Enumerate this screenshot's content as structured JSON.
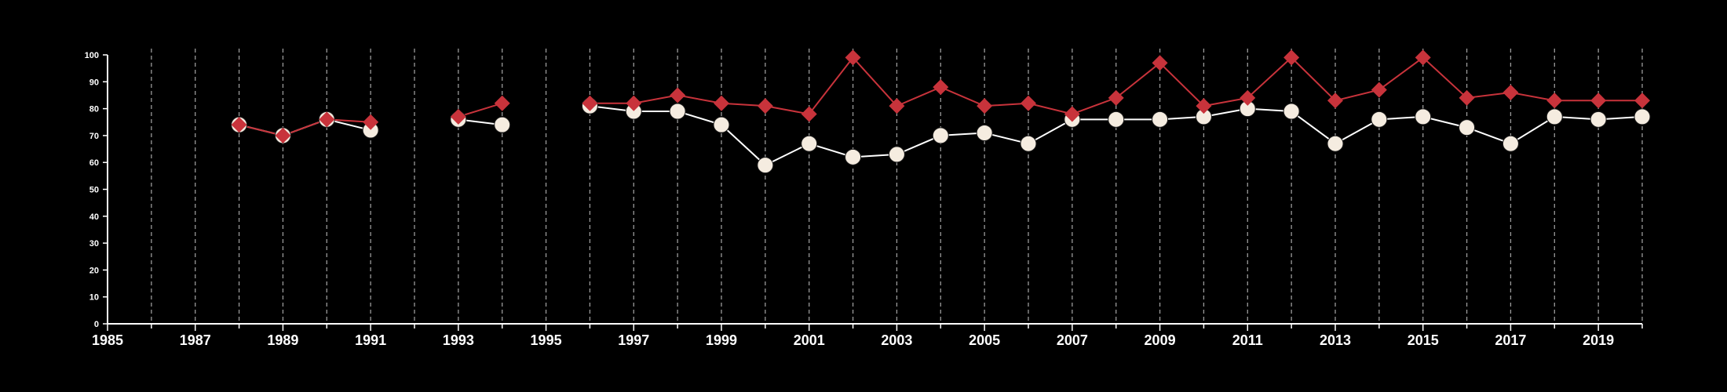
{
  "chart_data": {
    "type": "line",
    "title": "",
    "xlabel": "",
    "ylabel": "",
    "xlim": [
      1985,
      2020
    ],
    "ylim": [
      0,
      100
    ],
    "yticks": [
      0,
      10,
      20,
      30,
      40,
      50,
      60,
      70,
      80,
      90,
      100
    ],
    "xticks": [
      1985,
      1987,
      1989,
      1991,
      1993,
      1995,
      1997,
      1999,
      2001,
      2003,
      2005,
      2007,
      2009,
      2011,
      2013,
      2015,
      2017,
      2019
    ],
    "grid": "vertical dashed",
    "legend": "none",
    "x": [
      1985,
      1986,
      1987,
      1988,
      1989,
      1990,
      1991,
      1992,
      1993,
      1994,
      1995,
      1996,
      1997,
      1998,
      1999,
      2000,
      2001,
      2002,
      2003,
      2004,
      2005,
      2006,
      2007,
      2008,
      2009,
      2010,
      2011,
      2012,
      2013,
      2014,
      2015,
      2016,
      2017,
      2018,
      2019,
      2020
    ],
    "series": [
      {
        "marker": "circle",
        "color": "#f5ece0",
        "line_color": "#ffffff",
        "values": [
          null,
          null,
          null,
          74,
          70,
          76,
          72,
          null,
          76,
          74,
          null,
          81,
          79,
          79,
          74,
          59,
          67,
          62,
          63,
          70,
          71,
          67,
          76,
          76,
          76,
          77,
          80,
          79,
          67,
          76,
          77,
          73,
          67,
          77,
          76,
          77
        ]
      },
      {
        "marker": "diamond",
        "color": "#c8333b",
        "line_color": "#c8333b",
        "values": [
          null,
          null,
          null,
          74,
          70,
          76,
          75,
          null,
          77,
          82,
          null,
          82,
          82,
          85,
          82,
          81,
          78,
          99,
          81,
          88,
          81,
          82,
          78,
          84,
          97,
          81,
          84,
          99,
          83,
          87,
          99,
          84,
          86,
          83,
          83,
          83
        ]
      }
    ]
  }
}
